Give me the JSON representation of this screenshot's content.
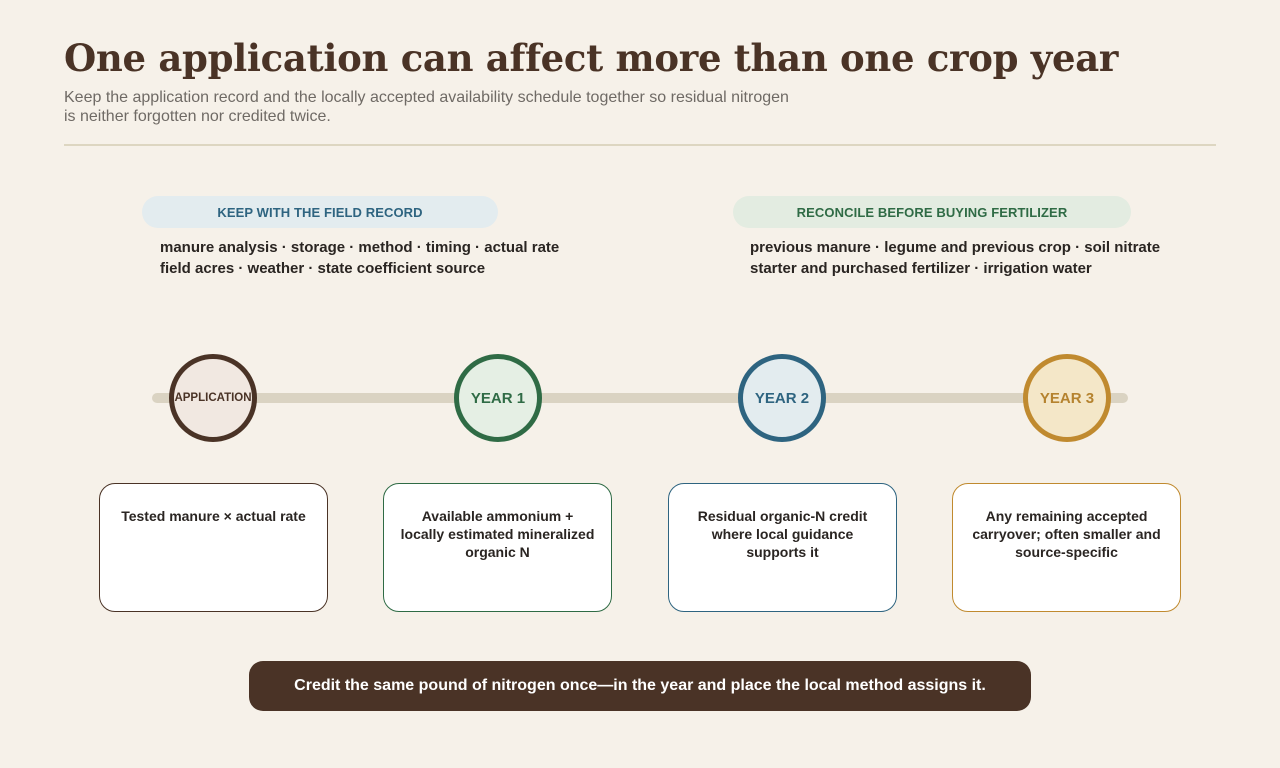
{
  "header": {
    "title": "One application can affect more than one crop year",
    "subtitle_lines": [
      "Keep the application record and the locally accepted availability schedule together so residual nitrogen",
      "is neither forgotten nor credited twice."
    ]
  },
  "left_panel": {
    "label": "KEEP WITH THE FIELD RECORD",
    "lines": [
      "manure analysis · storage · method · timing · actual rate",
      "field acres · weather · state coefficient source"
    ]
  },
  "right_panel": {
    "label": "RECONCILE BEFORE BUYING FERTILIZER",
    "lines": [
      "previous manure · legume and previous crop · soil nitrate",
      "starter and purchased fertilizer · irrigation water"
    ]
  },
  "timeline": {
    "nodes": [
      {
        "label": "APPLICATION",
        "card": "Tested manure × actual rate",
        "color": "#4a3326"
      },
      {
        "label": "YEAR 1",
        "card": "Available ammonium + locally estimated mineralized organic N",
        "color": "#2f6b45"
      },
      {
        "label": "YEAR 2",
        "card": "Residual organic-N credit where local guidance supports it",
        "color": "#2e6480"
      },
      {
        "label": "YEAR 3",
        "card": "Any remaining accepted carryover; often smaller and source-specific",
        "color": "#c08a2f"
      }
    ]
  },
  "footer": {
    "banner": "Credit the same pound of nitrogen once—in the year and place the local method assigns it."
  }
}
